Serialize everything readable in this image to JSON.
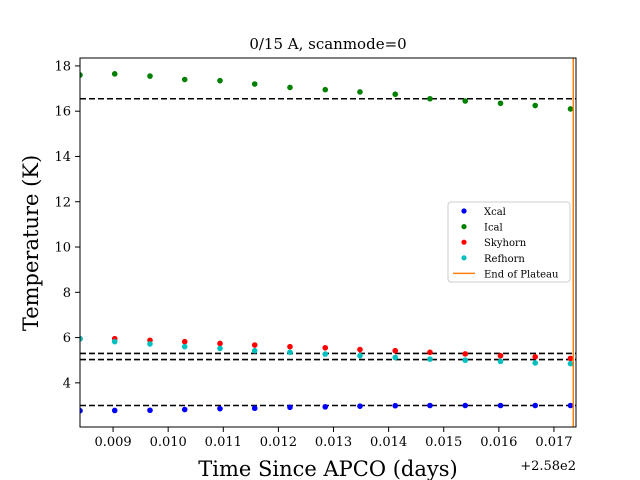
{
  "chart_data": {
    "type": "scatter",
    "title": "0/15 A, scanmode=0",
    "xlabel": "Time Since APCO (days)",
    "ylabel": "Temperature (K)",
    "offset_text": "+2.58e2",
    "xlim": [
      258.0084,
      258.0174
    ],
    "ylim": [
      2.05,
      18.35
    ],
    "x_ticks": [
      0.009,
      0.01,
      0.011,
      0.012,
      0.013,
      0.014,
      0.015,
      0.016,
      0.017
    ],
    "x_tick_labels": [
      "0.009",
      "0.010",
      "0.011",
      "0.012",
      "0.013",
      "0.014",
      "0.015",
      "0.016",
      "0.017"
    ],
    "y_ticks": [
      4,
      6,
      8,
      10,
      12,
      14,
      16,
      18
    ],
    "y_tick_labels": [
      "4",
      "6",
      "8",
      "10",
      "12",
      "14",
      "16",
      "18"
    ],
    "grid": false,
    "legend_position": "center-right",
    "x": [
      258.0084,
      258.00903,
      258.00967,
      258.0103,
      258.01094,
      258.01157,
      258.01221,
      258.01285,
      258.01348,
      258.01412,
      258.01475,
      258.01539,
      258.01603,
      258.01666,
      258.0173
    ],
    "series": [
      {
        "name": "Xcal",
        "color": "#0000ff",
        "values": [
          2.77,
          2.78,
          2.79,
          2.82,
          2.86,
          2.88,
          2.92,
          2.94,
          2.97,
          2.99,
          3.0,
          3.0,
          3.0,
          3.0,
          3.0
        ]
      },
      {
        "name": "Ical",
        "color": "#008000",
        "values": [
          17.6,
          17.65,
          17.55,
          17.4,
          17.35,
          17.2,
          17.05,
          16.95,
          16.85,
          16.75,
          16.55,
          16.45,
          16.35,
          16.25,
          16.1
        ]
      },
      {
        "name": "Skyhorn",
        "color": "#ff0000",
        "values": [
          5.95,
          5.95,
          5.88,
          5.82,
          5.74,
          5.67,
          5.6,
          5.55,
          5.47,
          5.42,
          5.35,
          5.28,
          5.2,
          5.15,
          5.08
        ]
      },
      {
        "name": "Refhorn",
        "color": "#00bfbf",
        "values": [
          5.95,
          5.82,
          5.72,
          5.6,
          5.52,
          5.42,
          5.35,
          5.27,
          5.2,
          5.12,
          5.05,
          5.0,
          4.95,
          4.88,
          4.85
        ]
      }
    ],
    "hlines": [
      16.55,
      5.3,
      5.03,
      3.0
    ],
    "vline": {
      "name": "End of Plateau",
      "x": 258.01735,
      "color": "#ff7f0e"
    }
  }
}
